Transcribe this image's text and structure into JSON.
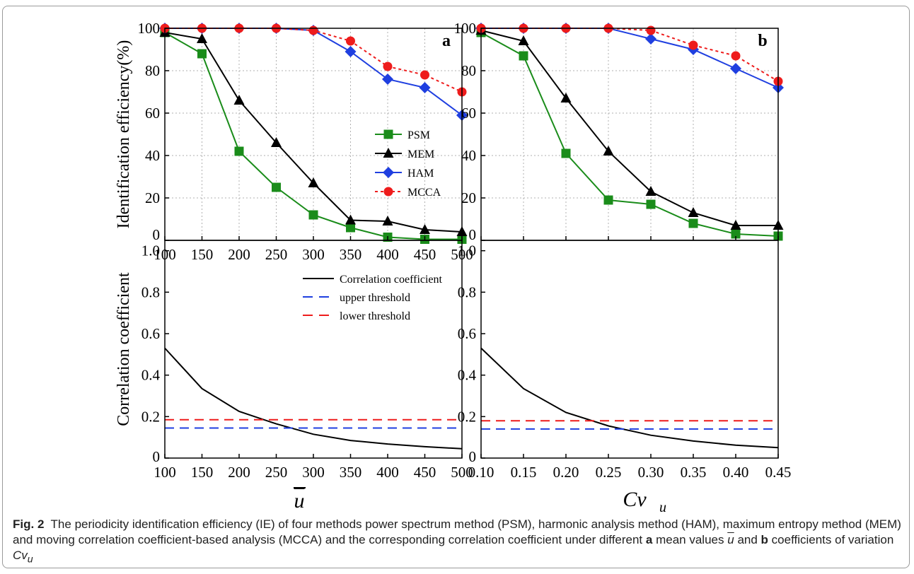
{
  "caption": {
    "fig_label": "Fig. 2",
    "text_1": "The periodicity identification efficiency (IE) of four methods power spectrum method (PSM), harmonic analysis method (HAM), maximum entropy method (MEM) and moving correlation coefficient-based analysis (MCCA) and the corresponding correlation coefficient under different",
    "letter_a": "a",
    "text_2": "mean values",
    "ubar": "u",
    "text_3": "and",
    "letter_b": "b",
    "text_4": "coefficients of variation",
    "cv": "Cv",
    "cv_sub": "u"
  },
  "colors": {
    "PSM": "#1a8c1a",
    "MEM": "#000000",
    "HAM": "#1f3fe0",
    "MCCA": "#ee1c1c",
    "upper": "#1f3fe0",
    "lower": "#ee1c1c",
    "grid": "#b0b0b0"
  },
  "chart_data": [
    {
      "id": "top-left",
      "type": "line",
      "panel_label": "a",
      "ylabel": "Identification efficiency(%)",
      "xlim": [
        100,
        500
      ],
      "ylim": [
        0,
        100
      ],
      "x": [
        100,
        150,
        200,
        250,
        300,
        350,
        400,
        450,
        500
      ],
      "x_tick_labels": [
        "100",
        "150",
        "200",
        "250",
        "300",
        "350",
        "400",
        "450",
        "500"
      ],
      "y_ticks": [
        0,
        20,
        40,
        60,
        80,
        100
      ],
      "y_tick_labels": [
        "0",
        "20",
        "40",
        "60",
        "80",
        "100"
      ],
      "grid": true,
      "legend_position": "center",
      "series": [
        {
          "name": "PSM",
          "marker": "square",
          "dashed": false,
          "values": [
            98,
            88,
            42,
            25,
            12,
            6,
            1.5,
            0.5,
            0.5
          ]
        },
        {
          "name": "MEM",
          "marker": "triangle",
          "dashed": false,
          "values": [
            98,
            95,
            66,
            46,
            27,
            9.5,
            9,
            5,
            4
          ]
        },
        {
          "name": "HAM",
          "marker": "diamond",
          "dashed": false,
          "values": [
            100,
            100,
            100,
            100,
            99,
            89,
            76,
            72,
            59
          ]
        },
        {
          "name": "MCCA",
          "marker": "circle",
          "dashed": true,
          "values": [
            100,
            100,
            100,
            100,
            99,
            94,
            82,
            78,
            70
          ]
        }
      ]
    },
    {
      "id": "top-right",
      "type": "line",
      "panel_label": "b",
      "xlim": [
        0.1,
        0.45
      ],
      "ylim": [
        0,
        100
      ],
      "x": [
        0.1,
        0.15,
        0.2,
        0.25,
        0.3,
        0.35,
        0.4,
        0.45
      ],
      "y_ticks": [
        0,
        20,
        40,
        60,
        80,
        100
      ],
      "y_tick_labels": [
        "0",
        "20",
        "40",
        "60",
        "80",
        "100"
      ],
      "grid": true,
      "series": [
        {
          "name": "PSM",
          "marker": "square",
          "dashed": false,
          "values": [
            98,
            87,
            41,
            19,
            17,
            8,
            3,
            2
          ]
        },
        {
          "name": "MEM",
          "marker": "triangle",
          "dashed": false,
          "values": [
            99,
            94,
            67,
            42,
            23,
            13,
            7,
            7
          ]
        },
        {
          "name": "HAM",
          "marker": "diamond",
          "dashed": false,
          "values": [
            100,
            100,
            100,
            100,
            95,
            90,
            81,
            72
          ]
        },
        {
          "name": "MCCA",
          "marker": "circle",
          "dashed": true,
          "values": [
            100,
            100,
            100,
            100,
            99,
            92,
            87,
            75
          ]
        }
      ]
    },
    {
      "id": "bottom-left",
      "type": "line",
      "ylabel": "Correlation coefficient",
      "xlabel": "u",
      "xlim": [
        100,
        500
      ],
      "ylim": [
        0,
        1.05
      ],
      "x": [
        100,
        150,
        200,
        250,
        300,
        350,
        400,
        450,
        500
      ],
      "x_tick_labels": [
        "100",
        "150",
        "200",
        "250",
        "300",
        "350",
        "400",
        "450",
        "500"
      ],
      "y_ticks": [
        0,
        0.2,
        0.4,
        0.6,
        0.8,
        1.0
      ],
      "y_tick_labels": [
        "0",
        "0.2",
        "0.4",
        "0.6",
        "0.8",
        "1.0"
      ],
      "grid": false,
      "legend_position": "top-right",
      "series": [
        {
          "name": "Correlation coefficient",
          "dashed": false,
          "values": [
            0.53,
            0.335,
            0.225,
            0.165,
            0.115,
            0.085,
            0.068,
            0.055,
            0.045
          ]
        },
        {
          "name": "upper threshold",
          "dashed": true,
          "values": [
            0.145,
            0.145,
            0.145,
            0.145,
            0.145,
            0.145,
            0.145,
            0.145,
            0.145
          ]
        },
        {
          "name": "lower threshold",
          "dashed": true,
          "values": [
            0.185,
            0.185,
            0.185,
            0.185,
            0.185,
            0.185,
            0.185,
            0.185,
            0.185
          ]
        }
      ]
    },
    {
      "id": "bottom-right",
      "type": "line",
      "xlabel": "Cv",
      "xlabel_sub": "u",
      "xlim": [
        0.1,
        0.45
      ],
      "ylim": [
        0,
        1.05
      ],
      "x": [
        0.1,
        0.15,
        0.2,
        0.25,
        0.3,
        0.35,
        0.4,
        0.45
      ],
      "x_tick_labels": [
        "0.10",
        "0.15",
        "0.20",
        "0.25",
        "0.30",
        "0.35",
        "0.40",
        "0.45"
      ],
      "y_ticks": [
        0,
        0.2,
        0.4,
        0.6,
        0.8,
        1.0
      ],
      "y_tick_labels": [
        "0",
        "0.2",
        "0.4",
        "0.6",
        "0.8",
        "1.0"
      ],
      "grid": false,
      "series": [
        {
          "name": "Correlation coefficient",
          "dashed": false,
          "values": [
            0.53,
            0.335,
            0.22,
            0.155,
            0.11,
            0.082,
            0.062,
            0.05
          ]
        },
        {
          "name": "upper threshold",
          "dashed": true,
          "values": [
            0.14,
            0.14,
            0.14,
            0.14,
            0.14,
            0.14,
            0.14,
            0.14
          ]
        },
        {
          "name": "lower threshold",
          "dashed": true,
          "values": [
            0.18,
            0.18,
            0.18,
            0.18,
            0.18,
            0.18,
            0.18,
            0.18
          ]
        }
      ]
    }
  ]
}
